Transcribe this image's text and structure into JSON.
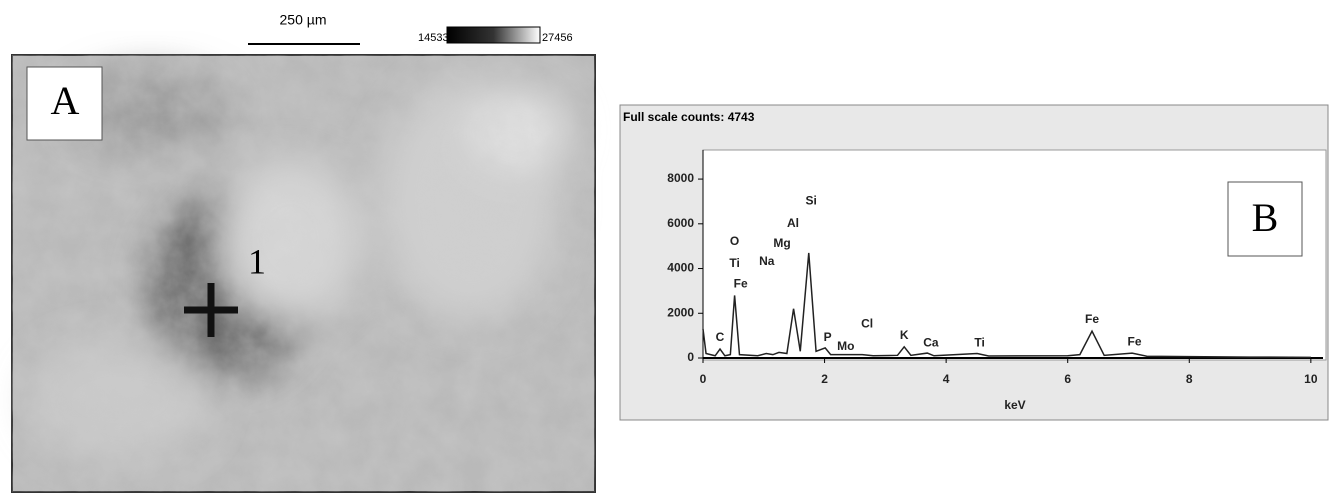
{
  "image": {
    "scale_bar": "250 µm",
    "range_min": 14533,
    "range_max": 27456,
    "panel_label": "A",
    "point_label": "1"
  },
  "chart_data": {
    "type": "line",
    "title": "Full scale counts: 4743",
    "x_label": "keV",
    "panel_label": "B",
    "x": [
      0,
      0.05,
      0.2,
      0.28,
      0.36,
      0.45,
      0.52,
      0.6,
      0.9,
      1.04,
      1.15,
      1.25,
      1.38,
      1.49,
      1.6,
      1.74,
      1.86,
      2.01,
      2.1,
      2.29,
      2.62,
      2.8,
      3.2,
      3.31,
      3.42,
      3.69,
      3.8,
      4.51,
      4.7,
      6.0,
      6.2,
      6.4,
      6.6,
      7.06,
      7.3,
      8,
      9,
      10
    ],
    "series": [
      {
        "color": "#222222",
        "values": [
          1300,
          200,
          100,
          400,
          100,
          150,
          2800,
          150,
          100,
          200,
          150,
          250,
          200,
          2200,
          300,
          4700,
          300,
          450,
          150,
          150,
          150,
          100,
          120,
          500,
          120,
          220,
          100,
          200,
          90,
          100,
          150,
          1200,
          120,
          220,
          80,
          60,
          40,
          30
        ]
      }
    ],
    "annotations": [
      "C",
      "O",
      "Ti",
      "Fe",
      "Na",
      "Mg",
      "Al",
      "Si",
      "P",
      "Mo",
      "Cl",
      "K",
      "Ca",
      "Ti",
      "Fe",
      "Fe"
    ],
    "xlim": [
      0,
      10.2
    ],
    "ylim": [
      0,
      9300
    ],
    "xticks": [
      0,
      2,
      4,
      6,
      8,
      10
    ],
    "yticks": [
      0,
      2000,
      4000,
      6000,
      8000
    ]
  }
}
